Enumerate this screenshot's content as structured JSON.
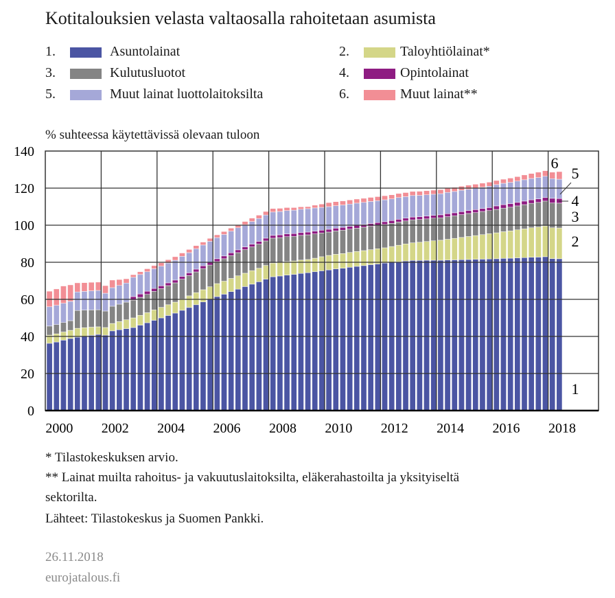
{
  "chart_data": {
    "type": "bar",
    "stacked": true,
    "title": "Kotitalouksien velasta valtaosalla rahoitetaan asumista",
    "ylabel": "% suhteessa käytettävissä olevaan tuloon",
    "xlabel": "",
    "ylim": [
      0,
      140
    ],
    "yticks": [
      "0",
      "20",
      "40",
      "60",
      "80",
      "100",
      "120",
      "140"
    ],
    "xticks": [
      "2000",
      "2002",
      "2004",
      "2006",
      "2008",
      "2010",
      "2012",
      "2014",
      "2016",
      "2018"
    ],
    "grid": true,
    "legend_placement": "top",
    "x": [
      "2000Q1",
      "2000Q2",
      "2000Q3",
      "2000Q4",
      "2001Q1",
      "2001Q2",
      "2001Q3",
      "2001Q4",
      "2002Q1",
      "2002Q2",
      "2002Q3",
      "2002Q4",
      "2003Q1",
      "2003Q2",
      "2003Q3",
      "2003Q4",
      "2004Q1",
      "2004Q2",
      "2004Q3",
      "2004Q4",
      "2005Q1",
      "2005Q2",
      "2005Q3",
      "2005Q4",
      "2006Q1",
      "2006Q2",
      "2006Q3",
      "2006Q4",
      "2007Q1",
      "2007Q2",
      "2007Q3",
      "2007Q4",
      "2008Q1",
      "2008Q2",
      "2008Q3",
      "2008Q4",
      "2009Q1",
      "2009Q2",
      "2009Q3",
      "2009Q4",
      "2010Q1",
      "2010Q2",
      "2010Q3",
      "2010Q4",
      "2011Q1",
      "2011Q2",
      "2011Q3",
      "2011Q4",
      "2012Q1",
      "2012Q2",
      "2012Q3",
      "2012Q4",
      "2013Q1",
      "2013Q2",
      "2013Q3",
      "2013Q4",
      "2014Q1",
      "2014Q2",
      "2014Q3",
      "2014Q4",
      "2015Q1",
      "2015Q2",
      "2015Q3",
      "2015Q4",
      "2016Q1",
      "2016Q2",
      "2016Q3",
      "2016Q4",
      "2017Q1",
      "2017Q2",
      "2017Q3",
      "2017Q4",
      "2018Q1",
      "2018Q2"
    ],
    "series": [
      {
        "num": "1.",
        "name": "Asuntolainat",
        "label": "1",
        "color": "#4b55a3",
        "values": [
          36.3,
          37.0,
          38.0,
          38.9,
          39.6,
          40.1,
          40.6,
          41.1,
          40.7,
          43.0,
          43.6,
          44.2,
          44.8,
          46.1,
          47.4,
          48.7,
          50.0,
          51.3,
          52.6,
          54.1,
          55.6,
          57.1,
          58.6,
          60.0,
          61.5,
          62.8,
          64.2,
          65.5,
          66.9,
          68.2,
          69.5,
          70.9,
          72.2,
          72.6,
          73.1,
          73.5,
          74.0,
          74.4,
          74.9,
          75.4,
          75.9,
          76.4,
          76.8,
          77.3,
          77.8,
          78.2,
          78.7,
          79.1,
          79.6,
          80.0,
          80.3,
          80.7,
          81.0,
          81.0,
          81.1,
          81.1,
          81.1,
          81.2,
          81.3,
          81.4,
          81.5,
          81.6,
          81.7,
          81.8,
          81.9,
          82.1,
          82.2,
          82.4,
          82.5,
          82.7,
          82.8,
          83.0,
          82.0,
          81.9
        ]
      },
      {
        "num": "2.",
        "name": "Taloyhtiölainat*",
        "label": "2",
        "color": "#d4d688",
        "values": [
          4.4,
          4.4,
          4.4,
          4.4,
          4.8,
          4.6,
          4.4,
          4.1,
          4.1,
          4.0,
          4.4,
          4.8,
          5.2,
          5.3,
          5.4,
          5.6,
          5.7,
          5.8,
          5.9,
          6.1,
          6.3,
          6.5,
          6.6,
          6.8,
          7.0,
          7.0,
          7.1,
          7.2,
          7.2,
          7.3,
          7.3,
          7.4,
          7.4,
          7.3,
          7.3,
          7.2,
          7.2,
          7.1,
          7.3,
          7.6,
          7.8,
          7.9,
          7.9,
          8.0,
          8.0,
          8.1,
          8.1,
          8.2,
          8.2,
          8.5,
          8.9,
          9.2,
          9.5,
          9.8,
          10.1,
          10.5,
          10.8,
          11.2,
          11.6,
          12.0,
          12.4,
          12.8,
          13.2,
          13.6,
          14.0,
          14.4,
          14.7,
          15.1,
          15.5,
          15.9,
          16.2,
          16.6,
          16.6,
          16.6
        ]
      },
      {
        "num": "3.",
        "name": "Kulutusluotot",
        "label": "3",
        "color": "#848484",
        "values": [
          4.9,
          5.0,
          5.1,
          5.2,
          9.6,
          9.5,
          9.3,
          9.2,
          8.9,
          9.3,
          9.4,
          9.5,
          9.6,
          9.7,
          9.9,
          10.0,
          10.1,
          10.3,
          10.4,
          10.7,
          10.9,
          11.2,
          11.4,
          11.7,
          11.9,
          12.1,
          12.3,
          12.5,
          12.7,
          12.8,
          13.0,
          13.2,
          13.4,
          13.4,
          13.4,
          13.3,
          13.3,
          13.3,
          13.1,
          12.8,
          12.6,
          12.6,
          12.6,
          12.6,
          12.6,
          12.6,
          12.6,
          12.6,
          12.6,
          12.5,
          12.5,
          12.4,
          12.4,
          12.3,
          12.2,
          12.2,
          12.1,
          12.2,
          12.2,
          12.3,
          12.4,
          12.4,
          12.5,
          12.5,
          12.6,
          12.7,
          12.8,
          12.9,
          13.1,
          13.2,
          13.3,
          13.4,
          13.4,
          13.4
        ]
      },
      {
        "num": "4.",
        "name": "Opintolainat",
        "label": "4",
        "color": "#8e1c82",
        "values": [
          0,
          0,
          0,
          0,
          0,
          0,
          0,
          0,
          0,
          0,
          0,
          0,
          1.9,
          1.8,
          1.7,
          1.6,
          1.5,
          1.5,
          1.5,
          1.5,
          1.5,
          1.5,
          1.5,
          1.5,
          1.5,
          1.5,
          1.5,
          1.5,
          1.5,
          1.5,
          1.5,
          1.5,
          1.5,
          1.5,
          1.5,
          1.5,
          1.5,
          1.5,
          1.5,
          1.5,
          1.5,
          1.5,
          1.5,
          1.5,
          1.5,
          1.5,
          1.5,
          1.5,
          1.5,
          1.5,
          1.5,
          1.5,
          1.5,
          1.5,
          1.5,
          1.5,
          1.6,
          1.6,
          1.6,
          1.6,
          1.6,
          1.6,
          1.6,
          1.6,
          1.9,
          1.9,
          1.9,
          1.9,
          1.9,
          1.9,
          1.9,
          1.9,
          2.5,
          2.5
        ]
      },
      {
        "num": "5.",
        "name": "Muut lainat luottolaitoksilta",
        "label": "5",
        "color": "#a5a8d8",
        "values": [
          10.4,
          10.4,
          10.4,
          10.4,
          10.0,
          10.1,
          10.3,
          10.4,
          9.6,
          10.0,
          10.1,
          10.3,
          10.4,
          10.5,
          10.5,
          10.6,
          10.6,
          10.7,
          10.7,
          10.8,
          10.9,
          11.0,
          11.2,
          11.3,
          11.4,
          11.6,
          11.7,
          11.9,
          12.0,
          12.2,
          12.3,
          12.5,
          12.6,
          12.6,
          12.6,
          12.6,
          12.6,
          12.6,
          12.5,
          12.3,
          12.2,
          12.1,
          12.1,
          12.0,
          12.0,
          11.9,
          11.9,
          11.8,
          11.8,
          11.7,
          11.7,
          11.6,
          11.6,
          11.5,
          11.5,
          11.4,
          11.4,
          11.5,
          11.5,
          11.5,
          11.5,
          11.5,
          11.5,
          11.5,
          11.5,
          11.5,
          11.5,
          11.5,
          11.5,
          11.5,
          11.5,
          11.5,
          10.6,
          10.4
        ]
      },
      {
        "num": "6.",
        "name": "Muut lainat**",
        "label": "6",
        "color": "#f28e95",
        "values": [
          8.4,
          8.8,
          9.3,
          8.9,
          4.9,
          4.7,
          4.6,
          4.5,
          4.1,
          4.1,
          3.2,
          2.3,
          1.4,
          1.5,
          1.6,
          1.7,
          1.8,
          1.8,
          1.9,
          1.8,
          1.7,
          1.7,
          1.6,
          1.6,
          1.5,
          1.6,
          1.6,
          1.7,
          1.7,
          1.8,
          1.8,
          1.9,
          1.9,
          1.7,
          1.6,
          1.4,
          1.3,
          1.1,
          1.5,
          1.8,
          2.2,
          2.2,
          2.2,
          2.2,
          2.2,
          2.2,
          2.2,
          2.2,
          2.2,
          2.2,
          2.2,
          2.2,
          2.2,
          2.2,
          2.2,
          2.2,
          2.2,
          2.2,
          2.2,
          2.2,
          2.2,
          2.2,
          2.2,
          2.2,
          2.2,
          2.2,
          2.3,
          2.4,
          2.6,
          2.7,
          2.9,
          3.0,
          3.5,
          4.1
        ]
      }
    ]
  },
  "notes": [
    "* Tilastokeskuksen arvio.",
    "** Lainat muilta rahoitus- ja vakuutuslaitoksilta, eläkerahastoilta ja yksityiseltä",
    "sektorilta.",
    "Lähteet: Tilastokeskus ja Suomen Pankki."
  ],
  "footer": {
    "date": "26.11.2018",
    "site": "eurojatalous.fi"
  }
}
